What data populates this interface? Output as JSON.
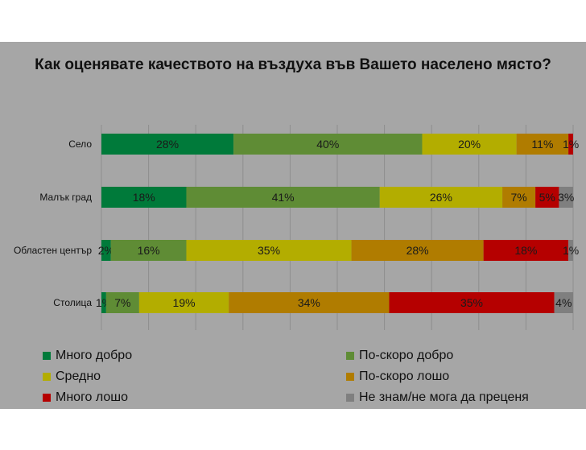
{
  "chart_data": {
    "type": "bar",
    "stacked": true,
    "orientation": "horizontal",
    "title": "Как оценявате качеството на въздуха във Вашето населено място?",
    "categories": [
      "Село",
      "Малък град",
      "Областен център",
      "Столица"
    ],
    "series": [
      {
        "name": "Много добро",
        "color": "#007a3a",
        "values": [
          28,
          18,
          2,
          1
        ],
        "labels": [
          "28%",
          "18%",
          "2%",
          "1%"
        ]
      },
      {
        "name": "По-скоро добро",
        "color": "#5f8c35",
        "values": [
          40,
          41,
          16,
          7
        ],
        "labels": [
          "40%",
          "41%",
          "16%",
          "7%"
        ]
      },
      {
        "name": "Средно",
        "color": "#b3ad00",
        "values": [
          20,
          26,
          35,
          19
        ],
        "labels": [
          "20%",
          "26%",
          "35%",
          "19%"
        ]
      },
      {
        "name": "По-скоро лошо",
        "color": "#b07c00",
        "values": [
          11,
          7,
          28,
          34
        ],
        "labels": [
          "11%",
          "7%",
          "28%",
          "34%"
        ]
      },
      {
        "name": "Много лошо",
        "color": "#b50000",
        "values": [
          1,
          5,
          18,
          35
        ],
        "labels": [
          "1%",
          "5%",
          "18%",
          "35%"
        ]
      },
      {
        "name": "Не знам/не мога да преценя",
        "color": "#7f7f7f",
        "values": [
          0,
          3,
          1,
          4
        ],
        "labels": [
          "",
          "3%",
          "1%",
          "4%"
        ]
      }
    ],
    "xlim": [
      0,
      100
    ],
    "grid": true,
    "legend_position": "bottom"
  }
}
